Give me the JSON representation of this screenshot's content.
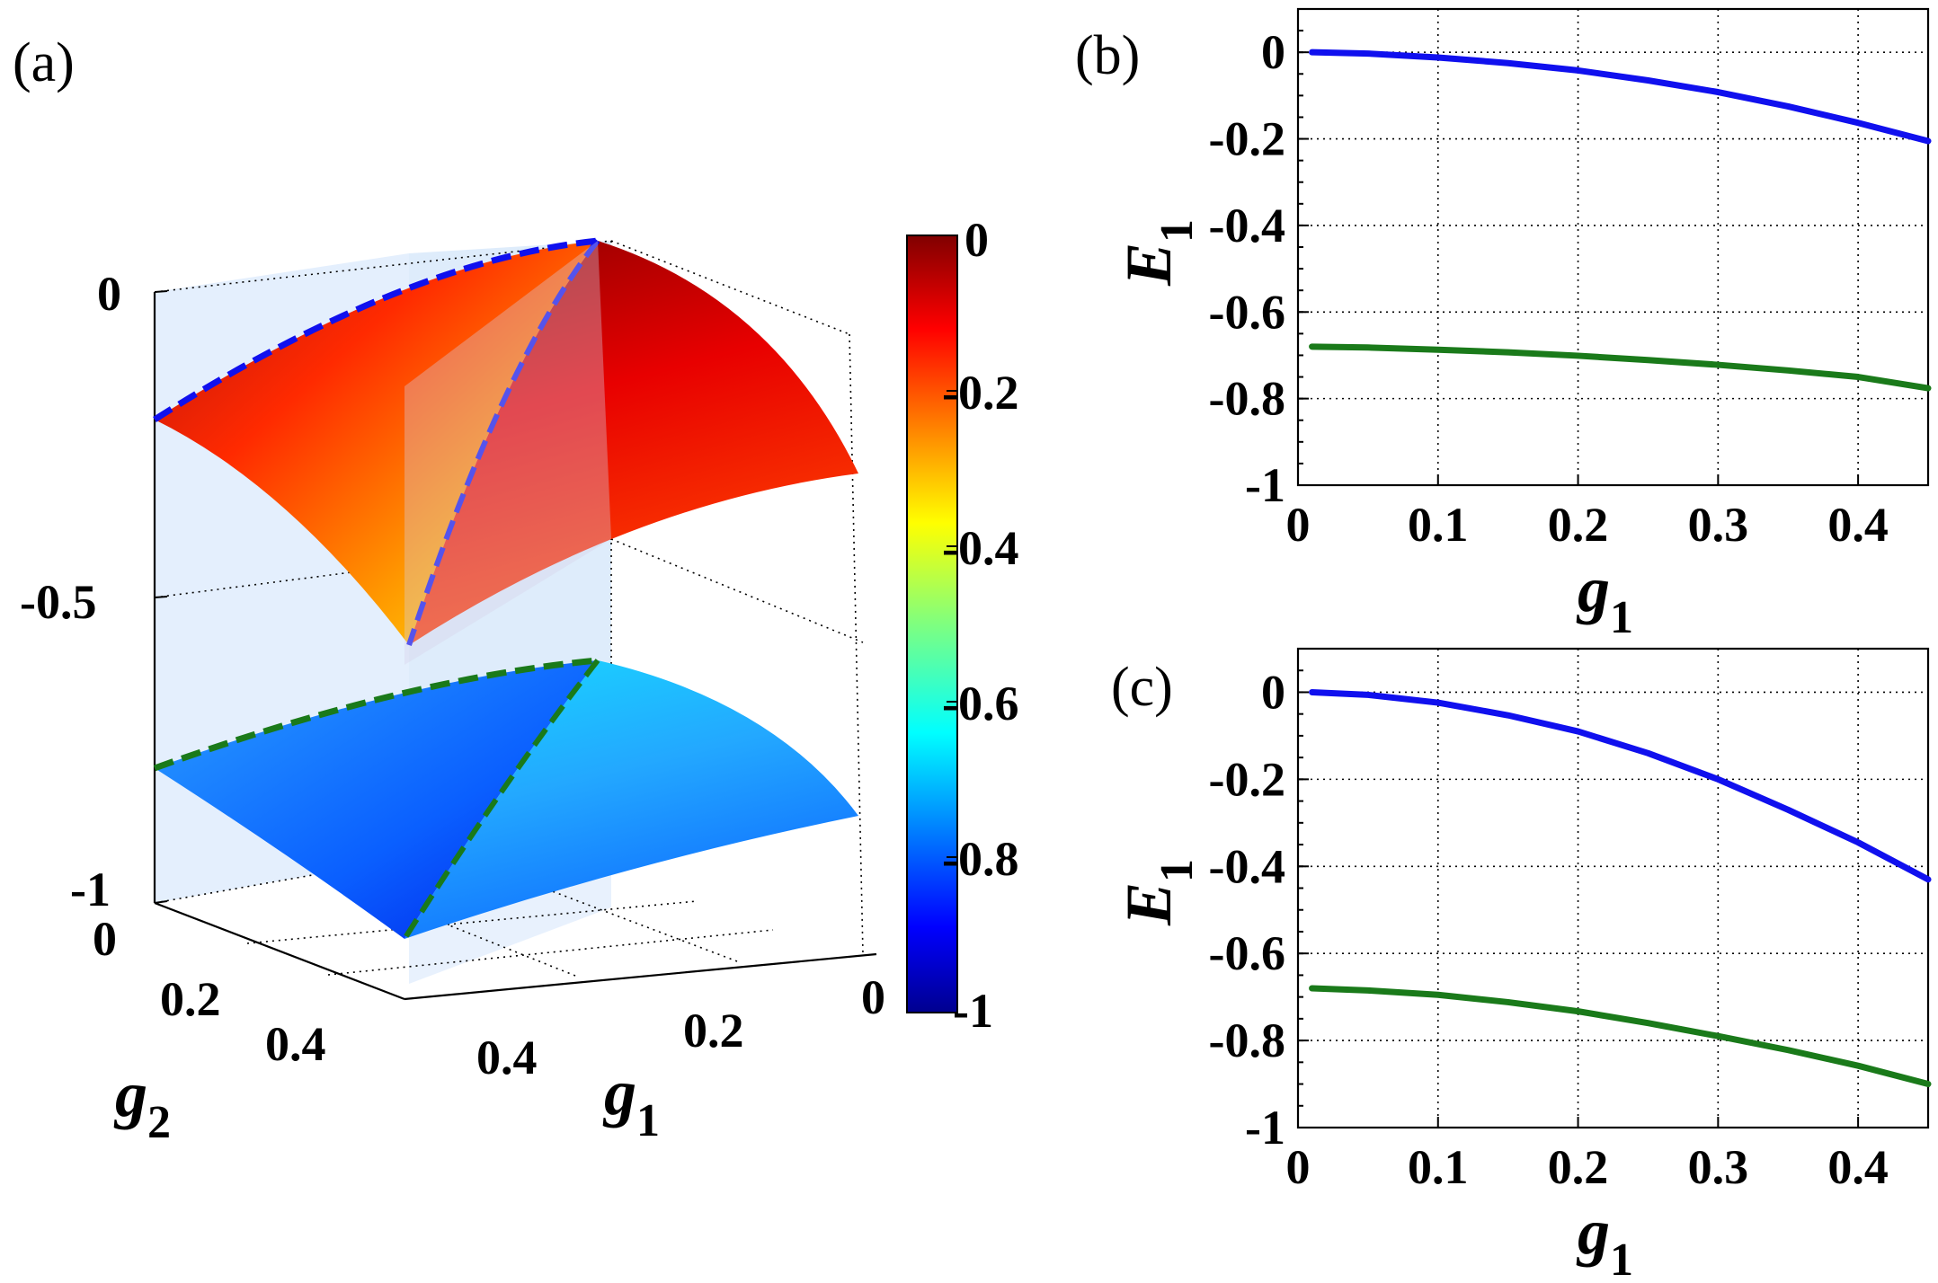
{
  "panels": {
    "a": "(a)",
    "b": "(b)",
    "c": "(c)"
  },
  "chart_data": [
    {
      "panel": "(a)",
      "type": "surface",
      "xlabel": "g",
      "xlabel_sub": "1",
      "ylabel": "g",
      "ylabel_sub": "2",
      "zlim": [
        -1,
        0
      ],
      "xlim": [
        0,
        0.45
      ],
      "ylim": [
        0,
        0.45
      ],
      "z_ticks": [
        "0",
        "-0.5",
        "-1"
      ],
      "g1_ticks": [
        "0",
        "0.2",
        "0.4"
      ],
      "g2_ticks": [
        "0",
        "0.2",
        "0.4"
      ],
      "grid": true,
      "colormap": "jet",
      "colorbar": {
        "ticks": [
          "0",
          "-0.2",
          "-0.4",
          "-0.6",
          "-0.8",
          "-1"
        ],
        "range": [
          -1,
          0
        ]
      },
      "surfaces": [
        {
          "corner_values": {
            "g1_0_g2_0": 0.0,
            "g1_0_g2_045": -0.21,
            "g1_045_g2_0": -0.21,
            "g1_045_g2_045": -0.59
          },
          "edge_color": "#1010ee"
        },
        {
          "corner_values": {
            "g1_0_g2_0": -0.68,
            "g1_0_g2_045": -0.78,
            "g1_045_g2_0": -0.78,
            "g1_045_g2_045": -1.0
          },
          "edge_color": "#1a7a1a"
        }
      ]
    },
    {
      "panel": "(b)",
      "type": "line",
      "xlabel": "g",
      "xlabel_sub": "1",
      "ylabel": "E",
      "ylabel_sub": "1",
      "xlim": [
        0,
        0.45
      ],
      "ylim": [
        -1,
        0.1
      ],
      "x_ticks": [
        "0",
        "0.1",
        "0.2",
        "0.3",
        "0.4"
      ],
      "y_ticks": [
        "0",
        "-0.2",
        "-0.4",
        "-0.6",
        "-0.8",
        "-1"
      ],
      "grid": true,
      "series": [
        {
          "color": "#1010ee",
          "x": [
            0.01,
            0.05,
            0.1,
            0.15,
            0.2,
            0.25,
            0.3,
            0.35,
            0.4,
            0.45
          ],
          "y": [
            0.0,
            -0.003,
            -0.012,
            -0.025,
            -0.042,
            -0.065,
            -0.092,
            -0.125,
            -0.163,
            -0.205
          ]
        },
        {
          "color": "#1a7a1a",
          "x": [
            0.01,
            0.05,
            0.1,
            0.15,
            0.2,
            0.25,
            0.3,
            0.35,
            0.4,
            0.45
          ],
          "y": [
            -0.68,
            -0.682,
            -0.687,
            -0.693,
            -0.701,
            -0.711,
            -0.722,
            -0.735,
            -0.75,
            -0.776
          ]
        }
      ]
    },
    {
      "panel": "(c)",
      "type": "line",
      "xlabel": "g",
      "xlabel_sub": "1",
      "ylabel": "E",
      "ylabel_sub": "1",
      "xlim": [
        0,
        0.45
      ],
      "ylim": [
        -1,
        0.1
      ],
      "x_ticks": [
        "0",
        "0.1",
        "0.2",
        "0.3",
        "0.4"
      ],
      "y_ticks": [
        "0",
        "-0.2",
        "-0.4",
        "-0.6",
        "-0.8",
        "-1"
      ],
      "grid": true,
      "series": [
        {
          "color": "#1010ee",
          "x": [
            0.01,
            0.05,
            0.1,
            0.15,
            0.2,
            0.25,
            0.3,
            0.35,
            0.4,
            0.45
          ],
          "y": [
            0.0,
            -0.006,
            -0.024,
            -0.053,
            -0.09,
            -0.14,
            -0.2,
            -0.27,
            -0.345,
            -0.43
          ]
        },
        {
          "color": "#1a7a1a",
          "x": [
            0.01,
            0.05,
            0.1,
            0.15,
            0.2,
            0.25,
            0.3,
            0.35,
            0.4,
            0.45
          ],
          "y": [
            -0.68,
            -0.685,
            -0.695,
            -0.712,
            -0.733,
            -0.76,
            -0.79,
            -0.822,
            -0.858,
            -0.9
          ]
        }
      ]
    }
  ]
}
